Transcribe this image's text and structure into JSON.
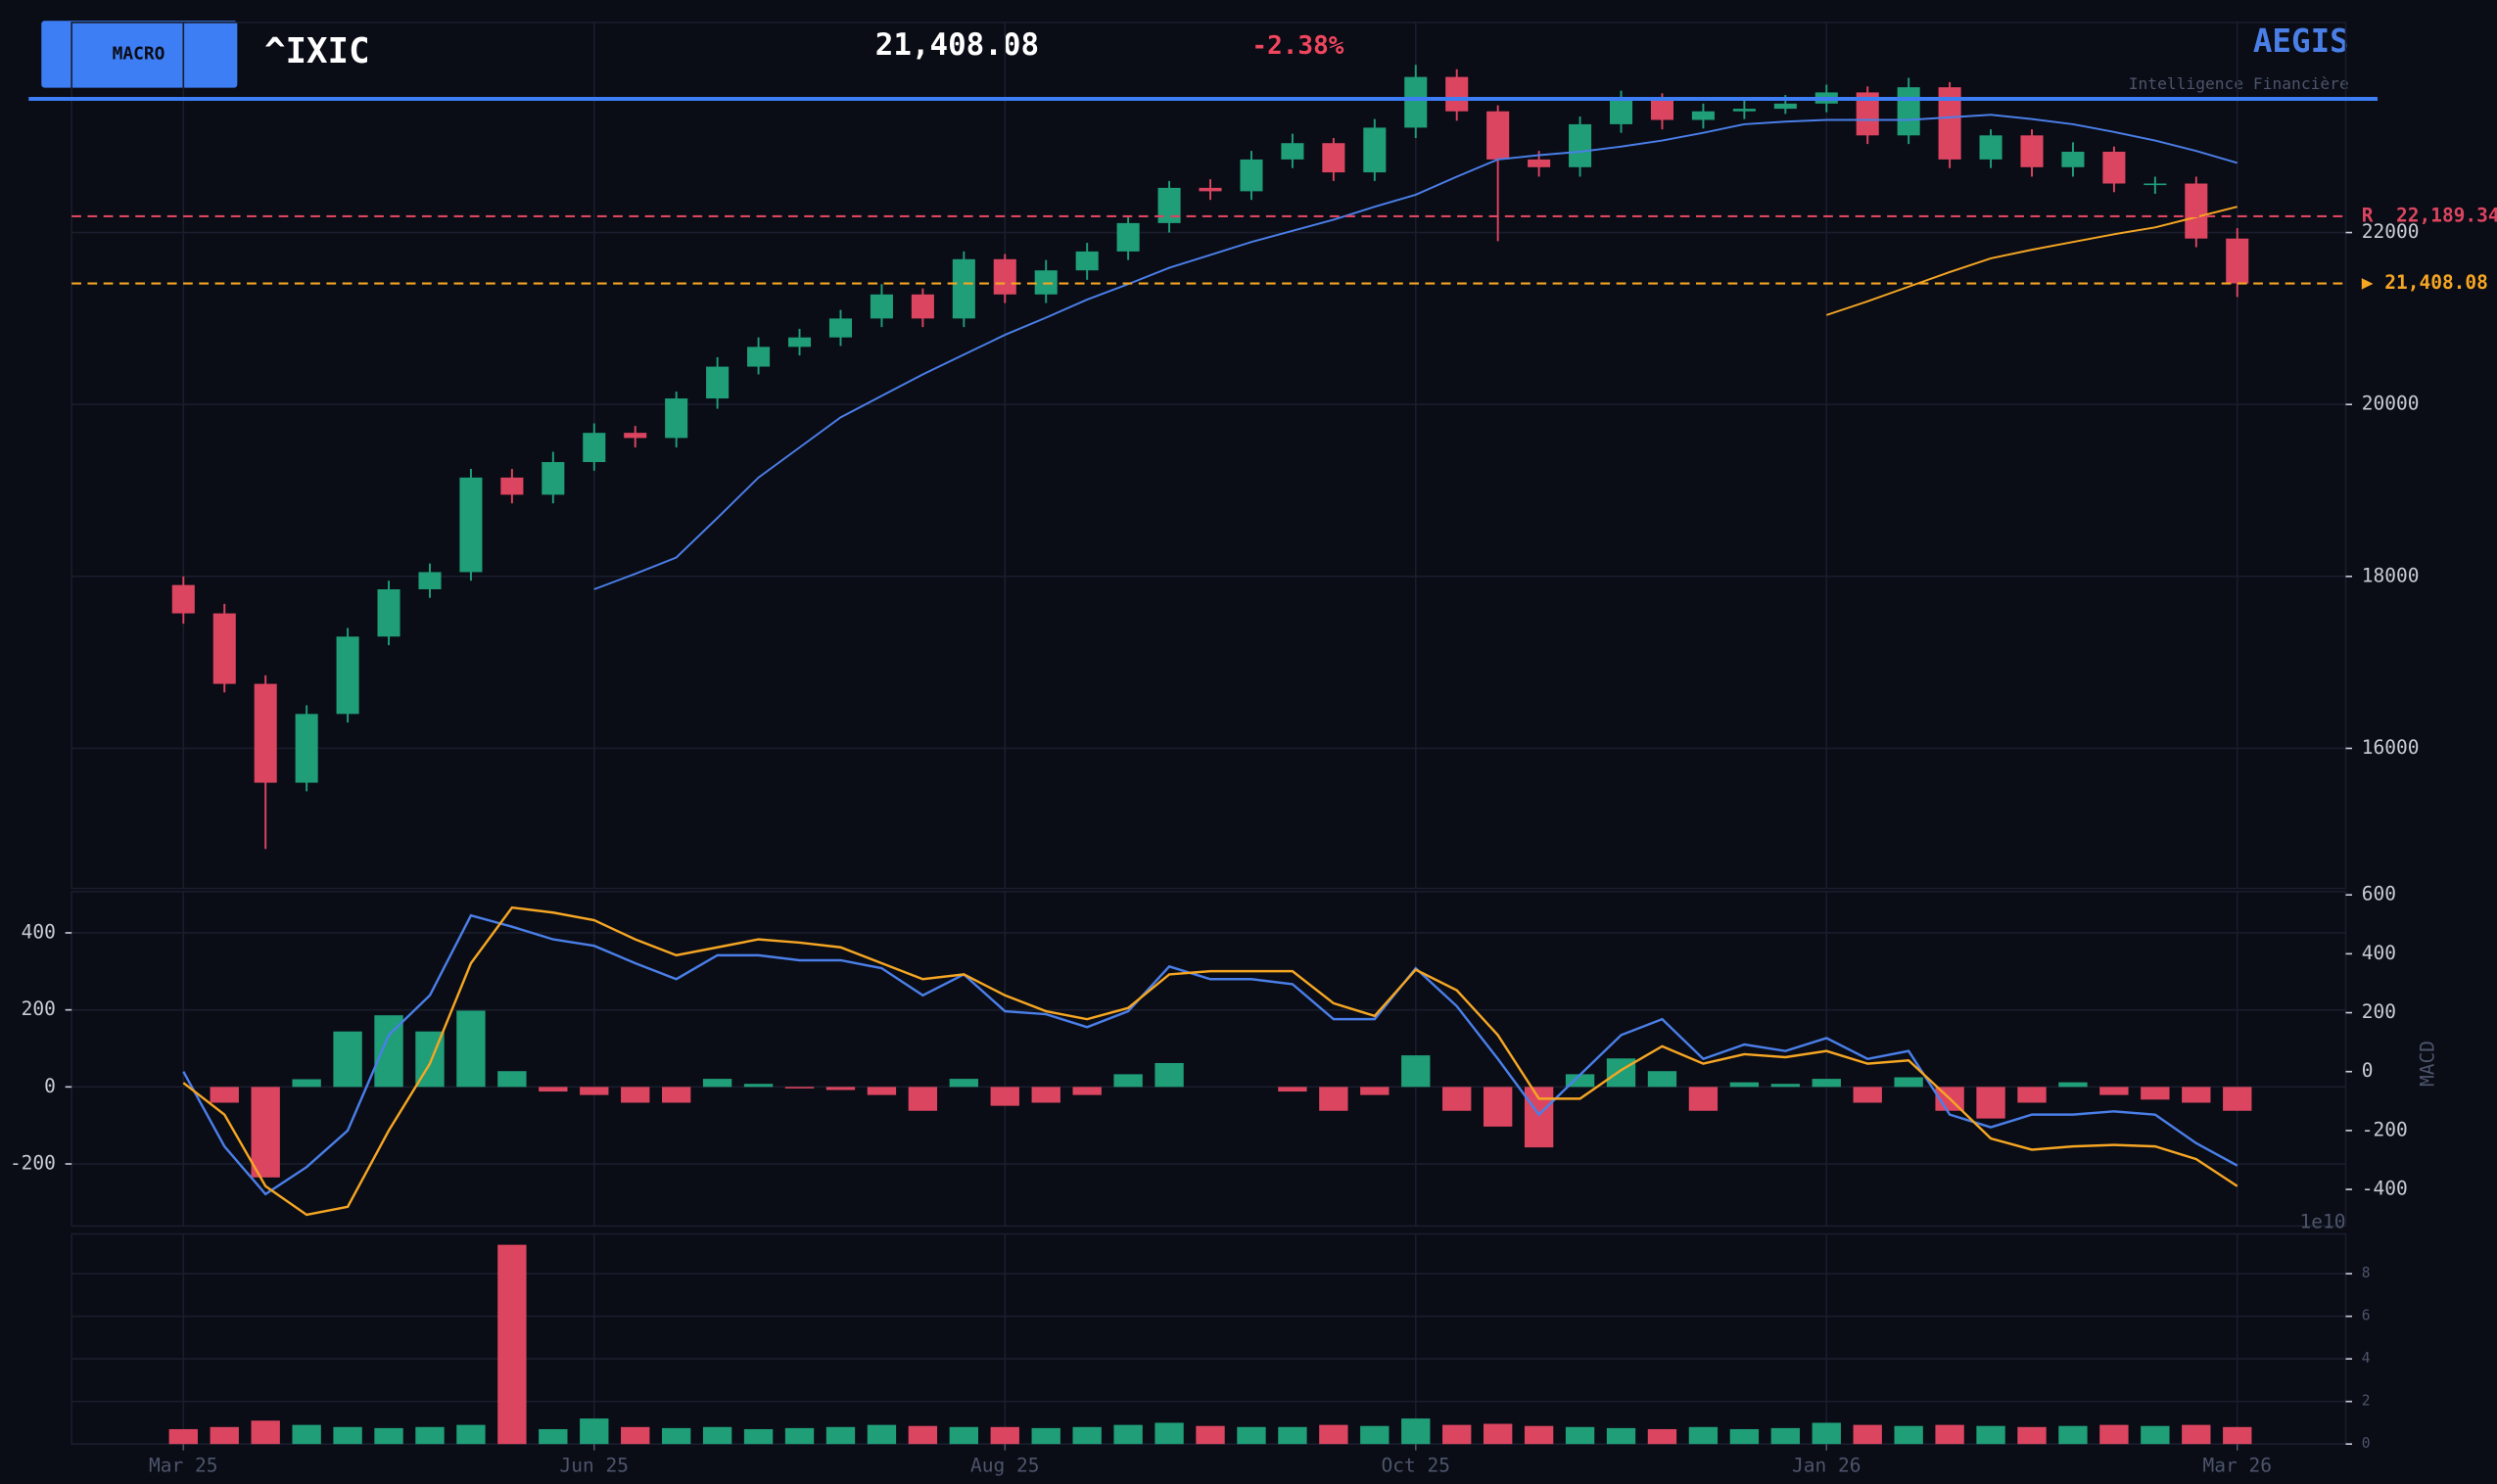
{
  "header": {
    "button": "MACRO",
    "symbol": "^IXIC",
    "price": "21,408.08",
    "change": "-2.38%",
    "brand": "AEGIS",
    "tagline": "Intelligence Financière"
  },
  "chart_data": [
    {
      "type": "candlestick",
      "x": [
        0,
        5,
        10,
        15,
        20,
        25,
        30,
        35,
        40,
        45,
        50,
        55,
        60,
        65,
        70,
        75,
        80,
        85,
        90,
        95,
        100,
        105,
        110,
        115,
        120,
        125,
        130,
        135,
        140,
        145,
        150,
        155,
        160,
        165,
        170,
        175,
        180,
        185,
        190,
        195,
        200,
        205,
        210,
        215,
        220,
        225,
        230,
        235,
        240,
        245,
        250
      ],
      "open": [
        17900,
        17570,
        16750,
        15600,
        16400,
        17300,
        17850,
        18050,
        19150,
        18950,
        19330,
        19670,
        19610,
        20070,
        20440,
        20670,
        20780,
        21000,
        21280,
        21000,
        21690,
        21280,
        21560,
        21780,
        22110,
        22520,
        22480,
        22850,
        23040,
        22700,
        23220,
        23810,
        23410,
        22850,
        22760,
        23260,
        23560,
        23310,
        23410,
        23440,
        23500,
        23630,
        23130,
        23690,
        22850,
        23130,
        22760,
        22940,
        22570,
        22570,
        21930
      ],
      "high": [
        18000,
        17680,
        16850,
        16500,
        17400,
        17950,
        18150,
        19250,
        19250,
        19450,
        19780,
        19750,
        20150,
        20550,
        20780,
        20880,
        21100,
        21400,
        21350,
        21780,
        21750,
        21680,
        21880,
        22200,
        22600,
        22620,
        22950,
        23150,
        23100,
        23320,
        23950,
        23900,
        23480,
        22950,
        23350,
        23650,
        23620,
        23500,
        23550,
        23600,
        23720,
        23700,
        23800,
        23750,
        23200,
        23200,
        23050,
        23000,
        22650,
        22650,
        22050
      ],
      "low": [
        17450,
        16650,
        14830,
        15500,
        16300,
        17200,
        17750,
        17950,
        18850,
        18850,
        19230,
        19500,
        19500,
        19950,
        20350,
        20570,
        20680,
        20900,
        20900,
        20900,
        21180,
        21180,
        21450,
        21680,
        22000,
        22380,
        22380,
        22750,
        22600,
        22600,
        23100,
        23300,
        21900,
        22650,
        22650,
        23160,
        23200,
        23210,
        23320,
        23380,
        23400,
        23030,
        23030,
        22750,
        22750,
        22650,
        22650,
        22470,
        22450,
        21830,
        21250
      ],
      "close": [
        17570,
        16750,
        15600,
        16400,
        17300,
        17850,
        18050,
        19150,
        18950,
        19330,
        19670,
        19610,
        20070,
        20440,
        20670,
        20780,
        21000,
        21280,
        21000,
        21690,
        21280,
        21560,
        21780,
        22110,
        22520,
        22480,
        22850,
        23040,
        22700,
        23220,
        23810,
        23410,
        22850,
        22760,
        23260,
        23560,
        23310,
        23410,
        23440,
        23500,
        23630,
        23130,
        23690,
        22850,
        23130,
        22760,
        22940,
        22570,
        22570,
        21930,
        21408.08
      ],
      "up_color": "#1f9e78",
      "down_color": "#dc4560",
      "overlays": [
        {
          "color": "#4a7fe8",
          "values": [
            null,
            null,
            null,
            null,
            null,
            null,
            null,
            null,
            null,
            null,
            17850,
            18030,
            18220,
            18680,
            19150,
            19500,
            19850,
            20100,
            20350,
            20580,
            20810,
            21010,
            21220,
            21400,
            21590,
            21740,
            21890,
            22020,
            22150,
            22300,
            22440,
            22650,
            22850,
            22900,
            22940,
            23000,
            23070,
            23160,
            23260,
            23290,
            23310,
            23310,
            23310,
            23340,
            23370,
            23320,
            23260,
            23170,
            23070,
            22950,
            22810
          ]
        },
        {
          "color": "#f5a623",
          "values": [
            null,
            null,
            null,
            null,
            null,
            null,
            null,
            null,
            null,
            null,
            null,
            null,
            null,
            null,
            null,
            null,
            null,
            null,
            null,
            null,
            null,
            null,
            null,
            null,
            null,
            null,
            null,
            null,
            null,
            null,
            null,
            null,
            null,
            null,
            null,
            null,
            null,
            null,
            null,
            null,
            21040,
            21200,
            21370,
            21540,
            21700,
            21800,
            21890,
            21980,
            22060,
            22180,
            22300
          ]
        }
      ],
      "levels": [
        {
          "value": 22189.34,
          "label": "R  22,189.34",
          "color": "#dc4560"
        },
        {
          "value": 21408.08,
          "label": "▶ 21,408.08",
          "color": "#f5a623"
        }
      ],
      "xlim": [
        -13.6,
        263.2
      ],
      "xticks": [
        {
          "value": 0,
          "label": "Mar 25"
        },
        {
          "value": 50,
          "label": "Jun 25"
        },
        {
          "value": 100,
          "label": "Aug 25"
        },
        {
          "value": 150,
          "label": "Oct 25"
        },
        {
          "value": 200,
          "label": "Jan 26"
        },
        {
          "value": 250,
          "label": "Mar 26"
        }
      ],
      "ylim": [
        14370,
        24444
      ],
      "yticks": [
        16000,
        18000,
        20000,
        22000
      ],
      "grid": true
    },
    {
      "type": "macd",
      "histogram": [
        0,
        -41,
        -235,
        20,
        144,
        186,
        144,
        198,
        41,
        -12,
        -21,
        -41,
        -41,
        21,
        8,
        -4,
        -8,
        -21,
        -62,
        21,
        -49,
        -41,
        -21,
        33,
        62,
        0,
        0,
        -12,
        -62,
        -21,
        82,
        -62,
        -103,
        -157,
        33,
        74,
        41,
        -62,
        12,
        8,
        21,
        -41,
        25,
        -62,
        -82,
        -41,
        12,
        -21,
        -33,
        -41,
        -62
      ],
      "ylim": [
        -361,
        507
      ],
      "yticks": [
        -200,
        0,
        200,
        400
      ],
      "series": [
        {
          "color": "#4a7fe8",
          "axis": "y2",
          "values": [
            0,
            -254,
            -416,
            -324,
            -200,
            124,
            259,
            530,
            492,
            449,
            427,
            368,
            314,
            395,
            395,
            378,
            378,
            351,
            259,
            330,
            205,
            195,
            151,
            205,
            357,
            314,
            314,
            297,
            178,
            178,
            351,
            222,
            43,
            -146,
            -11,
            124,
            178,
            43,
            92,
            70,
            114,
            43,
            70,
            -146,
            -189,
            -146,
            -146,
            -135,
            -146,
            -243,
            -319
          ]
        },
        {
          "color": "#f5a623",
          "axis": "y2",
          "values": [
            -38,
            -146,
            -389,
            -486,
            -459,
            -200,
            27,
            368,
            557,
            540,
            514,
            449,
            395,
            422,
            449,
            438,
            422,
            368,
            314,
            330,
            259,
            205,
            178,
            216,
            330,
            341,
            341,
            341,
            232,
            189,
            346,
            276,
            124,
            -92,
            -92,
            5,
            86,
            27,
            59,
            49,
            70,
            27,
            38,
            -92,
            -227,
            -265,
            -254,
            -249,
            -254,
            -297,
            -389
          ]
        }
      ],
      "y2lim": [
        -524,
        611
      ],
      "y2ticks": [
        -400,
        -200,
        0,
        200,
        400,
        600
      ],
      "y2label": "MACD",
      "grid": true
    },
    {
      "type": "volume",
      "values": [
        0.7,
        0.8,
        1.1,
        0.9,
        0.8,
        0.75,
        0.8,
        0.9,
        9.36,
        0.7,
        1.2,
        0.8,
        0.75,
        0.8,
        0.7,
        0.75,
        0.8,
        0.9,
        0.85,
        0.8,
        0.8,
        0.75,
        0.8,
        0.9,
        1.0,
        0.85,
        0.8,
        0.8,
        0.9,
        0.85,
        1.2,
        0.9,
        0.95,
        0.85,
        0.8,
        0.75,
        0.7,
        0.8,
        0.7,
        0.75,
        1.0,
        0.9,
        0.85,
        0.9,
        0.85,
        0.8,
        0.85,
        0.9,
        0.85,
        0.9,
        0.8
      ],
      "ylim": [
        0,
        9.87
      ],
      "yticks": [
        0,
        2,
        4,
        6,
        8
      ],
      "offset_label": "1e10",
      "grid": true
    }
  ]
}
